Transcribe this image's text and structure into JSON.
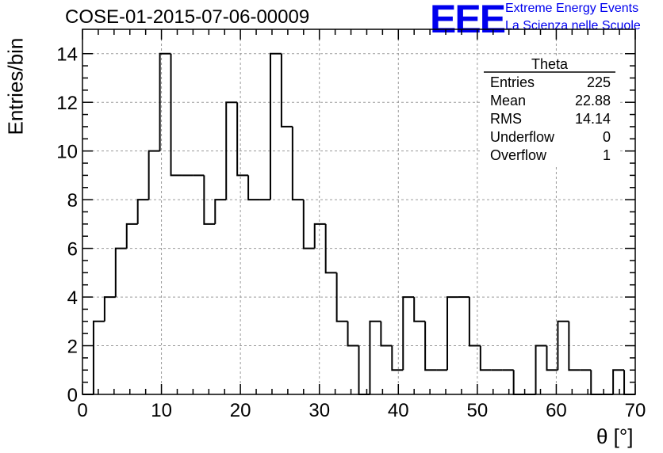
{
  "title": "COSE-01-2015-07-06-00009",
  "logo": {
    "text": "EEE",
    "line1": "Extreme Energy Events",
    "line2": "La Scienza nelle Scuole"
  },
  "stats": {
    "name": "Theta",
    "rows": [
      {
        "label": "Entries",
        "value": "225"
      },
      {
        "label": "Mean",
        "value": "22.88"
      },
      {
        "label": "RMS",
        "value": "14.14"
      },
      {
        "label": "Underflow",
        "value": "0"
      },
      {
        "label": "Overflow",
        "value": "1"
      }
    ]
  },
  "chart_data": {
    "type": "bar",
    "histogram": "step",
    "title": "COSE-01-2015-07-06-00009",
    "xlabel": "θ [°]",
    "ylabel": "Entries/bin",
    "xlim": [
      0,
      70
    ],
    "ylim": [
      0,
      15
    ],
    "grid": true,
    "x_ticks": [
      0,
      10,
      20,
      30,
      40,
      50,
      60,
      70
    ],
    "y_ticks": [
      0,
      2,
      4,
      6,
      8,
      10,
      12,
      14
    ],
    "bin_edges": [
      0,
      1.4,
      2.8,
      4.2,
      5.6,
      7.0,
      8.4,
      9.8,
      11.2,
      12.6,
      14.0,
      15.4,
      16.8,
      18.2,
      19.6,
      21.0,
      22.4,
      23.8,
      25.2,
      26.6,
      28.0,
      29.4,
      30.8,
      32.2,
      33.6,
      35.0,
      36.4,
      37.8,
      39.2,
      40.6,
      42.0,
      43.4,
      44.8,
      46.2,
      47.6,
      49.0,
      50.4,
      51.8,
      53.2,
      54.6,
      56.0,
      57.4,
      58.8,
      60.2,
      61.6,
      63.0,
      64.4,
      65.8,
      67.2,
      68.6,
      70.0
    ],
    "values": [
      0,
      3,
      4,
      6,
      7,
      8,
      10,
      14,
      9,
      9,
      9,
      7,
      8,
      12,
      9,
      8,
      8,
      14,
      11,
      8,
      6,
      7,
      5,
      3,
      2,
      0,
      3,
      2,
      1,
      4,
      3,
      1,
      1,
      4,
      4,
      2,
      1,
      1,
      1,
      0,
      0,
      2,
      1,
      3,
      1,
      1,
      0,
      0,
      1,
      0
    ]
  }
}
